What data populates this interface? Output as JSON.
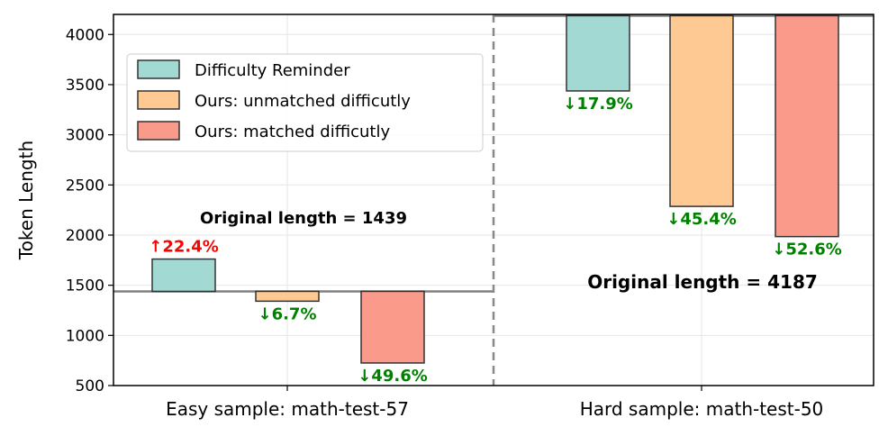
{
  "chart_data": {
    "type": "bar",
    "ylabel": "Token Length",
    "ylim": [
      500,
      4200
    ],
    "yticks": [
      500,
      1000,
      1500,
      2000,
      2500,
      3000,
      3500,
      4000
    ],
    "grid": true,
    "legend_position": "top-left",
    "series_names": [
      "Difficulty Reminder",
      "Ours: unmatched difficutly",
      "Ours: matched difficutly"
    ],
    "series_colors": [
      "#a2d9d3",
      "#fec992",
      "#fa9a8b"
    ],
    "groups": [
      {
        "category": "Easy sample: math-test-57",
        "original_length": 1439,
        "original_label": "Original length = 1439",
        "values": [
          1761,
          1341,
          725
        ],
        "change_labels": [
          "↑22.4%",
          "↓6.7%",
          "↓49.6%"
        ],
        "change_colors": [
          "#ff0000",
          "#008000",
          "#008000"
        ]
      },
      {
        "category": "Hard sample: math-test-50",
        "original_length": 4187,
        "original_label": "Original length = 4187",
        "values": [
          3437,
          2286,
          1985
        ],
        "change_labels": [
          "↓17.9%",
          "↓45.4%",
          "↓52.6%"
        ],
        "change_colors": [
          "#008000",
          "#008000",
          "#008000"
        ]
      }
    ]
  }
}
